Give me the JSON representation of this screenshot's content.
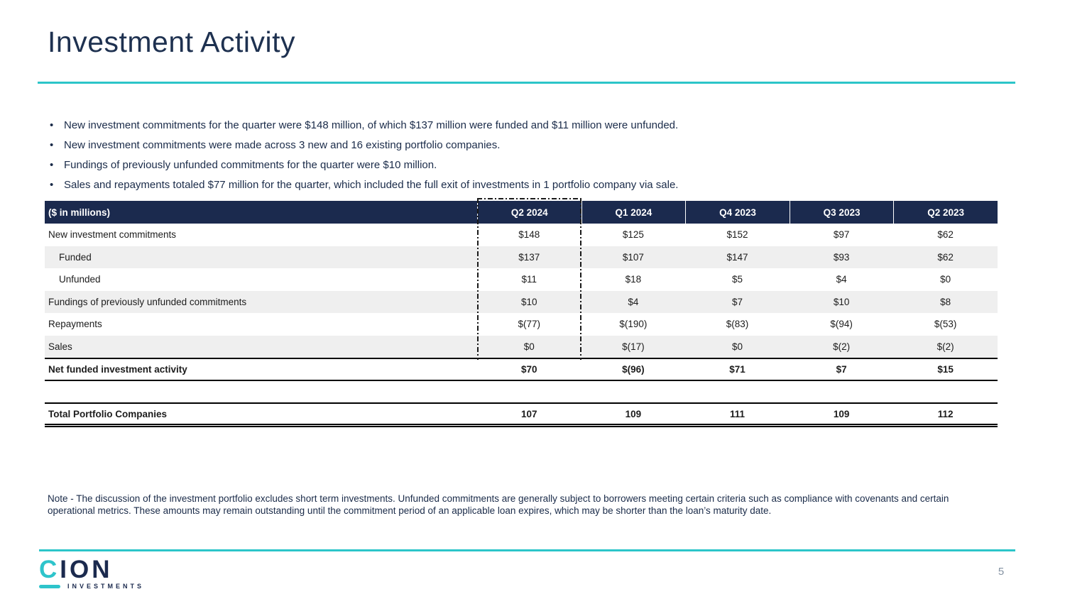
{
  "page": {
    "title": "Investment Activity"
  },
  "bullets": [
    "New investment commitments for the quarter were $148 million, of which $137 million were funded and $11 million were unfunded.",
    "New investment commitments were made across 3 new and 16 existing portfolio companies.",
    "Fundings of previously unfunded commitments for the quarter were $10 million.",
    "Sales and repayments totaled $77 million for the quarter, which included the full exit of investments in 1 portfolio company via sale."
  ],
  "table": {
    "unit_label": "($ in millions)",
    "columns": [
      "Q2 2024",
      "Q1 2024",
      "Q4 2023",
      "Q3 2023",
      "Q2 2023"
    ],
    "highlighted_column": "Q2 2024",
    "rows": [
      {
        "label": "New investment commitments",
        "values": [
          "$148",
          "$125",
          "$152",
          "$97",
          "$62"
        ]
      },
      {
        "label": "Funded",
        "values": [
          "$137",
          "$107",
          "$147",
          "$93",
          "$62"
        ]
      },
      {
        "label": "Unfunded",
        "values": [
          "$11",
          "$18",
          "$5",
          "$4",
          "$0"
        ]
      },
      {
        "label": "Fundings of previously unfunded commitments",
        "values": [
          "$10",
          "$4",
          "$7",
          "$10",
          "$8"
        ]
      },
      {
        "label": "Repayments",
        "values": [
          "$(77)",
          "$(190)",
          "$(83)",
          "$(94)",
          "$(53)"
        ]
      },
      {
        "label": "Sales",
        "values": [
          "$0",
          "$(17)",
          "$0",
          "$(2)",
          "$(2)"
        ]
      },
      {
        "label": "Net funded investment activity",
        "values": [
          "$70",
          "$(96)",
          "$71",
          "$7",
          "$15"
        ]
      }
    ],
    "total_row": {
      "label": "Total Portfolio Companies",
      "values": [
        "107",
        "109",
        "111",
        "109",
        "112"
      ]
    }
  },
  "note": "Note - The discussion of the investment portfolio excludes short term investments. Unfunded commitments are generally subject to borrowers meeting certain criteria such as compliance with covenants and certain operational metrics. These amounts may remain outstanding until the commitment period of an applicable loan expires, which may be shorter than the loan’s maturity date.",
  "footer": {
    "logo_c": "C",
    "logo_ion": "ION",
    "logo_subtext": "INVESTMENTS",
    "page_number": "5"
  },
  "colors": {
    "accent_teal": "#2cc5c9",
    "navy_header": "#1b2a4e",
    "title_navy": "#1e3150",
    "row_shade": "#efefef",
    "page_number_gray": "#8593a3"
  }
}
